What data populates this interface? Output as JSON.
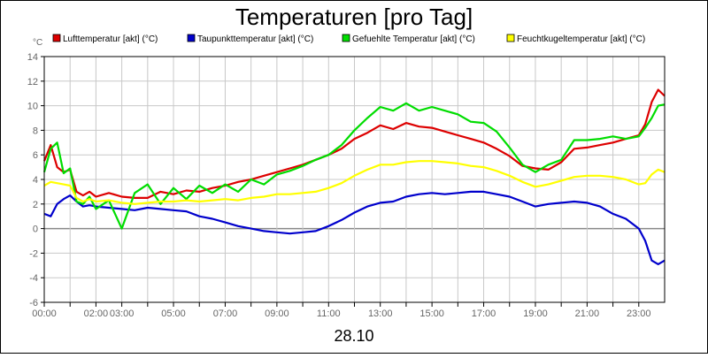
{
  "chart_data": {
    "type": "line",
    "title": "Temperaturen [pro Tag]",
    "date_label": "28.10",
    "ylabel": "°C",
    "ylim": [
      -6,
      14
    ],
    "yticks": [
      -6,
      -4,
      -2,
      0,
      2,
      4,
      6,
      8,
      10,
      12,
      14
    ],
    "xlim": [
      0,
      24
    ],
    "xticks": [
      {
        "pos": 0,
        "label": "00:00"
      },
      {
        "pos": 1,
        "label": ""
      },
      {
        "pos": 2,
        "label": "02:00"
      },
      {
        "pos": 3,
        "label": "03:00"
      },
      {
        "pos": 4,
        "label": ""
      },
      {
        "pos": 5,
        "label": "05:00"
      },
      {
        "pos": 6,
        "label": ""
      },
      {
        "pos": 7,
        "label": "07:00"
      },
      {
        "pos": 8,
        "label": ""
      },
      {
        "pos": 9,
        "label": "09:00"
      },
      {
        "pos": 10,
        "label": ""
      },
      {
        "pos": 11,
        "label": "11:00"
      },
      {
        "pos": 12,
        "label": ""
      },
      {
        "pos": 13,
        "label": "13:00"
      },
      {
        "pos": 14,
        "label": ""
      },
      {
        "pos": 15,
        "label": "15:00"
      },
      {
        "pos": 16,
        "label": ""
      },
      {
        "pos": 17,
        "label": "17:00"
      },
      {
        "pos": 18,
        "label": ""
      },
      {
        "pos": 19,
        "label": "19:00"
      },
      {
        "pos": 20,
        "label": ""
      },
      {
        "pos": 21,
        "label": "21:00"
      },
      {
        "pos": 22,
        "label": ""
      },
      {
        "pos": 23,
        "label": "23:00"
      }
    ],
    "grid": true,
    "legend_position": "top",
    "series": [
      {
        "name": "Lufttemperatur [akt] (°C)",
        "color": "#dd0000",
        "x": [
          0,
          0.25,
          0.5,
          0.75,
          1,
          1.25,
          1.5,
          1.75,
          2,
          2.5,
          3,
          3.5,
          4,
          4.5,
          5,
          5.5,
          6,
          6.5,
          7,
          7.5,
          8,
          8.5,
          9,
          9.5,
          10,
          10.5,
          11,
          11.5,
          12,
          12.5,
          13,
          13.5,
          14,
          14.5,
          15,
          15.5,
          16,
          16.5,
          17,
          17.5,
          18,
          18.5,
          19,
          19.5,
          20,
          20.5,
          21,
          21.5,
          22,
          22.5,
          23,
          23.25,
          23.5,
          23.75,
          24
        ],
        "values": [
          5.5,
          6.8,
          5.0,
          4.6,
          4.8,
          3.0,
          2.7,
          3.0,
          2.6,
          2.9,
          2.6,
          2.5,
          2.5,
          3.0,
          2.8,
          3.1,
          3.0,
          3.3,
          3.5,
          3.8,
          4.0,
          4.3,
          4.6,
          4.9,
          5.2,
          5.6,
          6.0,
          6.5,
          7.3,
          7.8,
          8.4,
          8.1,
          8.6,
          8.3,
          8.2,
          7.9,
          7.6,
          7.3,
          7.0,
          6.5,
          5.9,
          5.1,
          4.9,
          4.8,
          5.4,
          6.5,
          6.6,
          6.8,
          7.0,
          7.3,
          7.6,
          8.5,
          10.3,
          11.3,
          10.8
        ]
      },
      {
        "name": "Taupunkttemperatur [akt] (°C)",
        "color": "#0000cc",
        "x": [
          0,
          0.25,
          0.5,
          0.75,
          1,
          1.25,
          1.5,
          1.75,
          2,
          2.5,
          3,
          3.5,
          4,
          4.5,
          5,
          5.5,
          6,
          6.5,
          7,
          7.5,
          8,
          8.5,
          9,
          9.5,
          10,
          10.5,
          11,
          11.5,
          12,
          12.5,
          13,
          13.5,
          14,
          14.5,
          15,
          15.5,
          16,
          16.5,
          17,
          17.5,
          18,
          18.5,
          19,
          19.5,
          20,
          20.5,
          21,
          21.5,
          22,
          22.5,
          23,
          23.25,
          23.5,
          23.75,
          24
        ],
        "values": [
          1.2,
          1.0,
          2.0,
          2.4,
          2.7,
          2.2,
          1.8,
          1.9,
          1.8,
          1.7,
          1.6,
          1.5,
          1.7,
          1.6,
          1.5,
          1.4,
          1.0,
          0.8,
          0.5,
          0.2,
          0.0,
          -0.2,
          -0.3,
          -0.4,
          -0.3,
          -0.2,
          0.2,
          0.7,
          1.3,
          1.8,
          2.1,
          2.2,
          2.6,
          2.8,
          2.9,
          2.8,
          2.9,
          3.0,
          3.0,
          2.8,
          2.6,
          2.2,
          1.8,
          2.0,
          2.1,
          2.2,
          2.1,
          1.8,
          1.2,
          0.8,
          0.0,
          -1.0,
          -2.6,
          -2.9,
          -2.6
        ]
      },
      {
        "name": "Gefuehlte Temperatur [akt] (°C)",
        "color": "#00dd00",
        "x": [
          0,
          0.25,
          0.5,
          0.75,
          1,
          1.25,
          1.5,
          1.75,
          2,
          2.5,
          3,
          3.5,
          4,
          4.5,
          5,
          5.5,
          6,
          6.5,
          7,
          7.5,
          8,
          8.5,
          9,
          9.5,
          10,
          10.5,
          11,
          11.5,
          12,
          12.5,
          13,
          13.5,
          14,
          14.5,
          15,
          15.5,
          16,
          16.5,
          17,
          17.5,
          18,
          18.5,
          19,
          19.5,
          20,
          20.5,
          21,
          21.5,
          22,
          22.5,
          23,
          23.25,
          23.5,
          23.75,
          24
        ],
        "values": [
          4.6,
          6.5,
          7.0,
          4.5,
          4.9,
          2.2,
          2.0,
          2.6,
          1.6,
          2.3,
          0.0,
          2.9,
          3.6,
          2.0,
          3.3,
          2.4,
          3.5,
          2.9,
          3.6,
          3.0,
          4.0,
          3.6,
          4.4,
          4.7,
          5.1,
          5.6,
          6.0,
          6.8,
          8.0,
          9.0,
          9.9,
          9.6,
          10.2,
          9.6,
          9.9,
          9.6,
          9.3,
          8.7,
          8.6,
          7.9,
          6.6,
          5.2,
          4.6,
          5.2,
          5.6,
          7.2,
          7.2,
          7.3,
          7.5,
          7.3,
          7.5,
          8.2,
          9.0,
          10.0,
          10.1
        ]
      },
      {
        "name": "Feuchtkugeltemperatur [akt] (°C)",
        "color": "#ffff00",
        "x": [
          0,
          0.25,
          0.5,
          0.75,
          1,
          1.25,
          1.5,
          1.75,
          2,
          2.5,
          3,
          3.5,
          4,
          4.5,
          5,
          5.5,
          6,
          6.5,
          7,
          7.5,
          8,
          8.5,
          9,
          9.5,
          10,
          10.5,
          11,
          11.5,
          12,
          12.5,
          13,
          13.5,
          14,
          14.5,
          15,
          15.5,
          16,
          16.5,
          17,
          17.5,
          18,
          18.5,
          19,
          19.5,
          20,
          20.5,
          21,
          21.5,
          22,
          22.5,
          23,
          23.25,
          23.5,
          23.75,
          24
        ],
        "values": [
          3.5,
          3.8,
          3.7,
          3.6,
          3.5,
          2.5,
          2.2,
          2.4,
          2.2,
          2.3,
          2.1,
          2.0,
          2.1,
          2.2,
          2.2,
          2.3,
          2.2,
          2.3,
          2.4,
          2.3,
          2.5,
          2.6,
          2.8,
          2.8,
          2.9,
          3.0,
          3.3,
          3.7,
          4.3,
          4.8,
          5.2,
          5.2,
          5.4,
          5.5,
          5.5,
          5.4,
          5.3,
          5.1,
          5.0,
          4.7,
          4.3,
          3.8,
          3.4,
          3.6,
          3.9,
          4.2,
          4.3,
          4.3,
          4.2,
          4.0,
          3.6,
          3.7,
          4.4,
          4.8,
          4.6
        ]
      }
    ]
  }
}
